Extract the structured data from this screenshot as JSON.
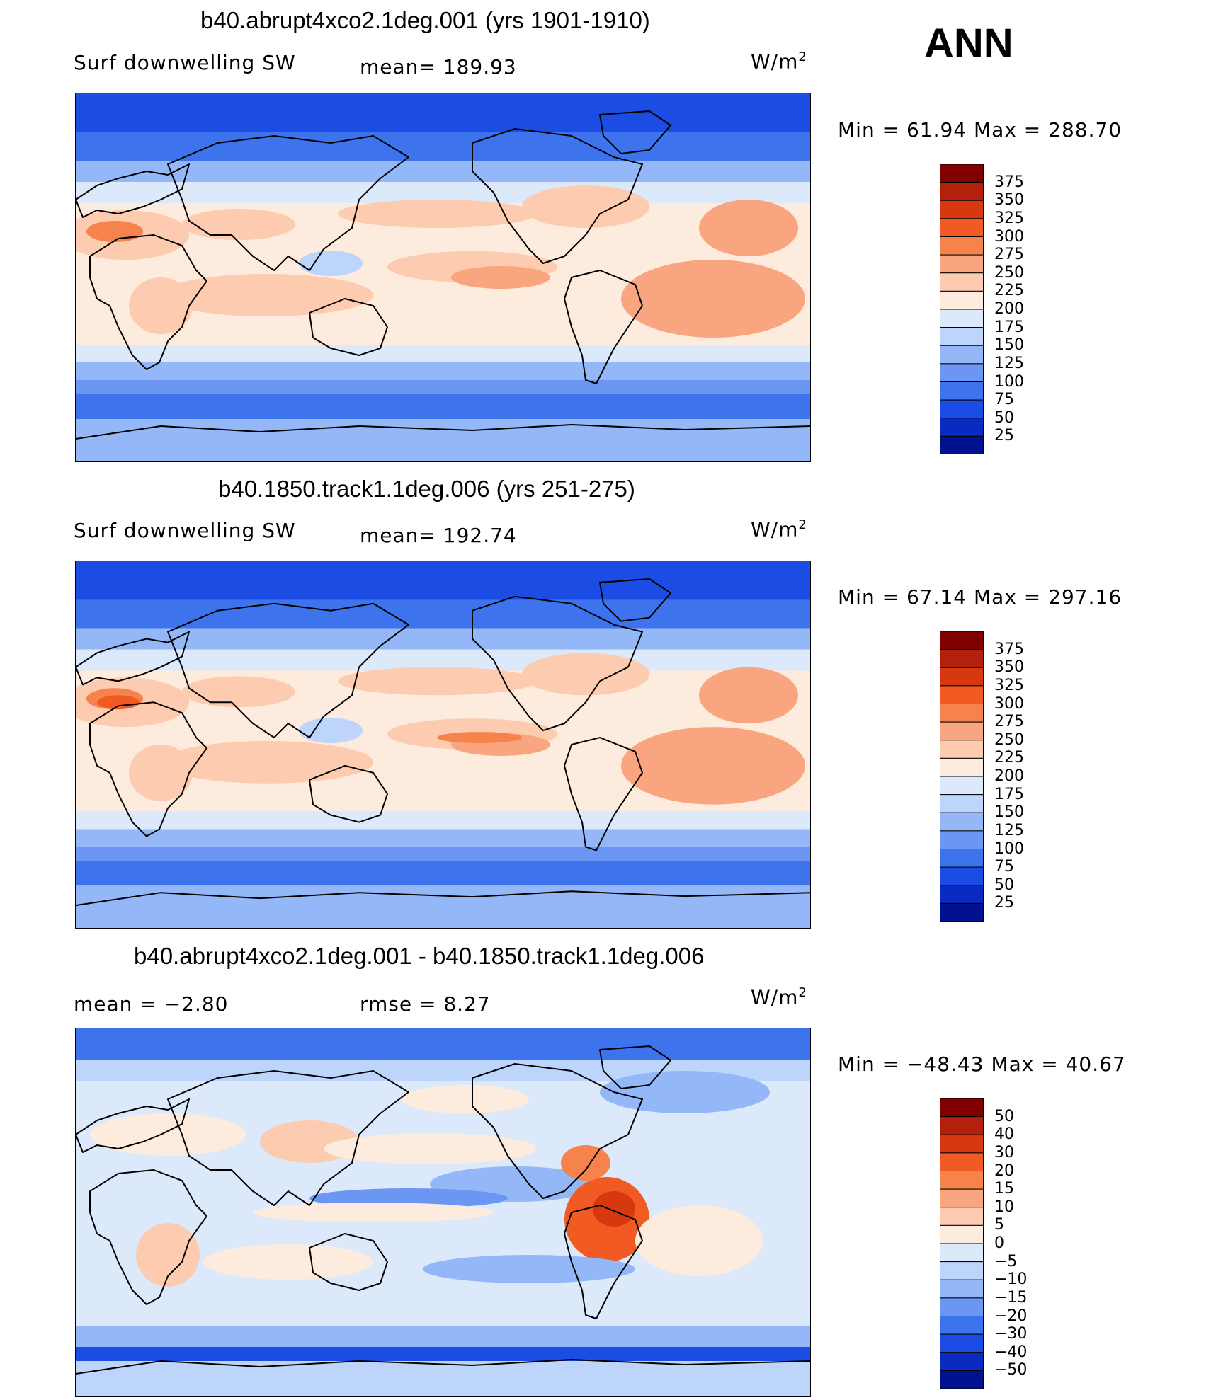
{
  "season": "ANN",
  "panels": [
    {
      "title": "b40.abrupt4xco2.1deg.001 (yrs 1901-1910)",
      "left_label": "Surf downwelling SW",
      "center_label": "mean= 189.93",
      "units_base": "W/m",
      "units_exp": "2",
      "minmax": "Min =   61.94 Max = 288.70",
      "cbar_labels": [
        "375",
        "350",
        "325",
        "300",
        "275",
        "250",
        "225",
        "200",
        "175",
        "150",
        "125",
        "100",
        "75",
        "50",
        "25"
      ]
    },
    {
      "title": "b40.1850.track1.1deg.006 (yrs 251-275)",
      "left_label": "Surf downwelling SW",
      "center_label": "mean= 192.74",
      "units_base": "W/m",
      "units_exp": "2",
      "minmax": "Min =   67.14 Max = 297.16",
      "cbar_labels": [
        "375",
        "350",
        "325",
        "300",
        "275",
        "250",
        "225",
        "200",
        "175",
        "150",
        "125",
        "100",
        "75",
        "50",
        "25"
      ]
    },
    {
      "title": "b40.abrupt4xco2.1deg.001 - b40.1850.track1.1deg.006",
      "left_label": "mean =   −2.80",
      "center_label": "rmse =    8.27",
      "units_base": "W/m",
      "units_exp": "2",
      "minmax": "Min = −48.43 Max =   40.67",
      "cbar_labels": [
        "50",
        "40",
        "30",
        "20",
        "15",
        "10",
        "5",
        "0",
        "−5",
        "−10",
        "−15",
        "−20",
        "−30",
        "−40",
        "−50"
      ]
    }
  ],
  "colors": {
    "palette": [
      "#800000",
      "#b3200c",
      "#d7380f",
      "#f25a23",
      "#f6834c",
      "#f9a57f",
      "#fccbb0",
      "#fdebdd",
      "#dce9fb",
      "#bdd4fb",
      "#94b7f7",
      "#6b97f2",
      "#3e73ee",
      "#1b4de4",
      "#0a2bc2",
      "#00128f"
    ],
    "land_outline": "#000000"
  },
  "chart_data": [
    {
      "type": "heatmap",
      "title": "b40.abrupt4xco2.1deg.001 (yrs 1901-1910)",
      "variable": "Surf downwelling SW",
      "units": "W/m2",
      "mean": 189.93,
      "min": 61.94,
      "max": 288.7,
      "contour_levels": [
        25,
        50,
        75,
        100,
        125,
        150,
        175,
        200,
        225,
        250,
        275,
        300,
        325,
        350,
        375
      ]
    },
    {
      "type": "heatmap",
      "title": "b40.1850.track1.1deg.006 (yrs 251-275)",
      "variable": "Surf downwelling SW",
      "units": "W/m2",
      "mean": 192.74,
      "min": 67.14,
      "max": 297.16,
      "contour_levels": [
        25,
        50,
        75,
        100,
        125,
        150,
        175,
        200,
        225,
        250,
        275,
        300,
        325,
        350,
        375
      ]
    },
    {
      "type": "heatmap",
      "title": "b40.abrupt4xco2.1deg.001 - b40.1850.track1.1deg.006",
      "variable": "difference",
      "units": "W/m2",
      "mean": -2.8,
      "rmse": 8.27,
      "min": -48.43,
      "max": 40.67,
      "contour_levels": [
        -50,
        -40,
        -30,
        -20,
        -15,
        -10,
        -5,
        0,
        5,
        10,
        15,
        20,
        30,
        40,
        50
      ]
    }
  ]
}
